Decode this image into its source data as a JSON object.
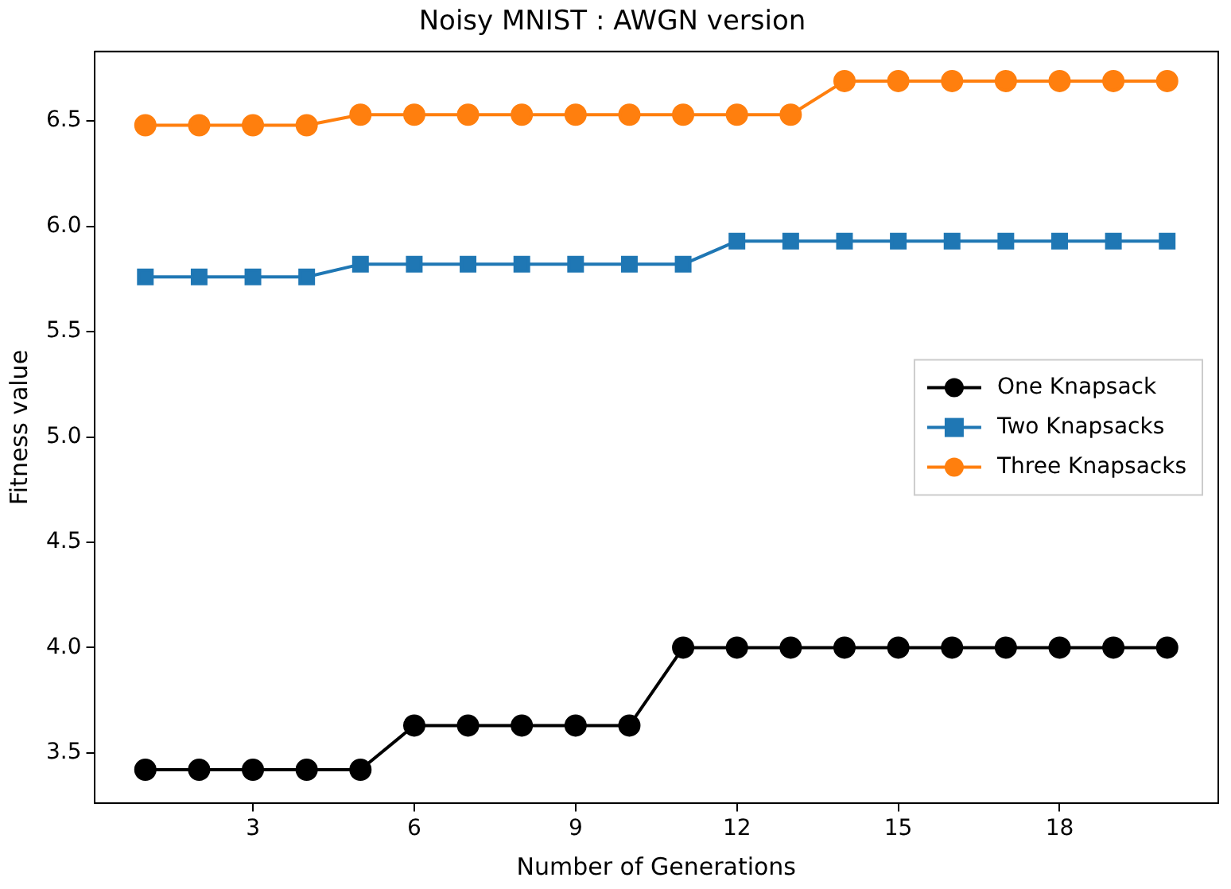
{
  "chart_data": {
    "type": "line",
    "title": "Noisy MNIST : AWGN version",
    "xlabel": "Number of Generations",
    "ylabel": "Fitness value",
    "x": [
      1,
      2,
      3,
      4,
      5,
      6,
      7,
      8,
      9,
      10,
      11,
      12,
      13,
      14,
      15,
      16,
      17,
      18,
      19,
      20
    ],
    "xlim": [
      0.05,
      20.95
    ],
    "xticks": [
      3,
      6,
      9,
      12,
      15,
      18
    ],
    "ylim": [
      3.26,
      6.83
    ],
    "yticks": [
      3.5,
      {
        "value": 4,
        "label": "4.0"
      },
      4.5,
      {
        "value": 5,
        "label": "5.0"
      },
      5.5,
      {
        "value": 6,
        "label": "6.0"
      },
      6.5
    ],
    "series": [
      {
        "name": "One Knapsack",
        "color": "#000000",
        "marker": "circle",
        "values": [
          3.42,
          3.42,
          3.42,
          3.42,
          3.42,
          3.63,
          3.63,
          3.63,
          3.63,
          3.63,
          4.0,
          4.0,
          4.0,
          4.0,
          4.0,
          4.0,
          4.0,
          4.0,
          4.0,
          4.0
        ]
      },
      {
        "name": "Two Knapsacks",
        "color": "#1f77b4",
        "marker": "square",
        "values": [
          5.76,
          5.76,
          5.76,
          5.76,
          5.82,
          5.82,
          5.82,
          5.82,
          5.82,
          5.82,
          5.82,
          5.93,
          5.93,
          5.93,
          5.93,
          5.93,
          5.93,
          5.93,
          5.93,
          5.93
        ]
      },
      {
        "name": "Three Knapsacks",
        "color": "#ff7f0e",
        "marker": "circle",
        "values": [
          6.48,
          6.48,
          6.48,
          6.48,
          6.53,
          6.53,
          6.53,
          6.53,
          6.53,
          6.53,
          6.53,
          6.53,
          6.53,
          6.69,
          6.69,
          6.69,
          6.69,
          6.69,
          6.69,
          6.69
        ]
      }
    ],
    "legend": "center right",
    "grid": false
  }
}
